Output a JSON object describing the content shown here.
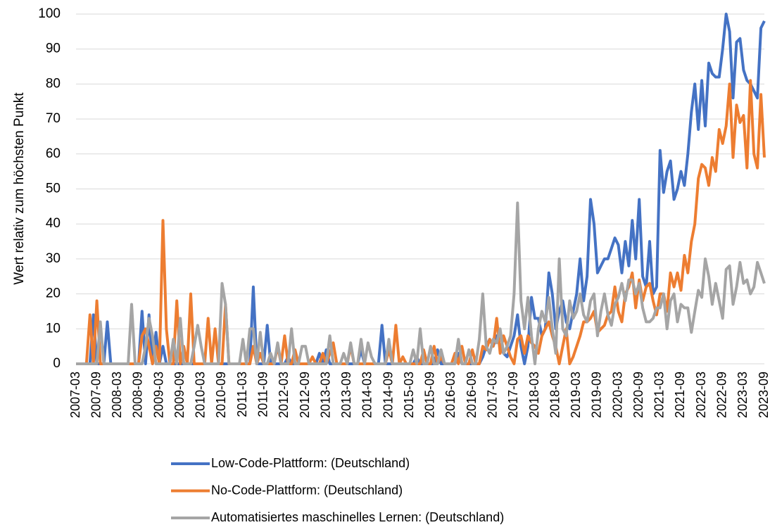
{
  "chart_data": {
    "type": "line",
    "y_label": "Wert relativ zum höchsten Punkt",
    "ylim": [
      0,
      100
    ],
    "yticks": [
      0,
      10,
      20,
      30,
      40,
      50,
      60,
      70,
      80,
      90,
      100
    ],
    "grid": true,
    "legend": "bottom",
    "categories": [
      "2007-03",
      null,
      null,
      null,
      null,
      null,
      "2007-09",
      null,
      null,
      null,
      null,
      null,
      "2008-03",
      null,
      null,
      null,
      null,
      null,
      "2008-09",
      null,
      null,
      null,
      null,
      null,
      "2009-03",
      null,
      null,
      null,
      null,
      null,
      "2009-09",
      null,
      null,
      null,
      null,
      null,
      "2010-03",
      null,
      null,
      null,
      null,
      null,
      "2010-09",
      null,
      null,
      null,
      null,
      null,
      "2011-03",
      null,
      null,
      null,
      null,
      null,
      "2011-09",
      null,
      null,
      null,
      null,
      null,
      "2012-03",
      null,
      null,
      null,
      null,
      null,
      "2012-09",
      null,
      null,
      null,
      null,
      null,
      "2013-03",
      null,
      null,
      null,
      null,
      null,
      "2013-09",
      null,
      null,
      null,
      null,
      null,
      "2014-03",
      null,
      null,
      null,
      null,
      null,
      "2014-09",
      null,
      null,
      null,
      null,
      null,
      "2015-03",
      null,
      null,
      null,
      null,
      null,
      "2015-09",
      null,
      null,
      null,
      null,
      null,
      "2016-03",
      null,
      null,
      null,
      null,
      null,
      "2016-09",
      null,
      null,
      null,
      null,
      null,
      "2017-03",
      null,
      null,
      null,
      null,
      null,
      "2017-09",
      null,
      null,
      null,
      null,
      null,
      "2018-03",
      null,
      null,
      null,
      null,
      null,
      "2018-09",
      null,
      null,
      null,
      null,
      null,
      "2019-03",
      null,
      null,
      null,
      null,
      null,
      "2019-09",
      null,
      null,
      null,
      null,
      null,
      "2020-03",
      null,
      null,
      null,
      null,
      null,
      "2020-09",
      null,
      null,
      null,
      null,
      null,
      "2021-03",
      null,
      null,
      null,
      null,
      null,
      "2021-09",
      null,
      null,
      null,
      null,
      null,
      "2022-03",
      null,
      null,
      null,
      null,
      null,
      "2022-09",
      null,
      null,
      null,
      null,
      null,
      "2023-03",
      null,
      null,
      null,
      null,
      null,
      "2023-09"
    ],
    "series": [
      {
        "name": "Low-Code-Plattform: (Deutschland)",
        "color": "#4472c4",
        "values": [
          0,
          0,
          0,
          0,
          0,
          14,
          0,
          0,
          0,
          12,
          0,
          0,
          0,
          0,
          0,
          0,
          0,
          0,
          0,
          15,
          0,
          14,
          0,
          9,
          0,
          5,
          0,
          0,
          0,
          0,
          0,
          0,
          0,
          0,
          0,
          0,
          0,
          0,
          0,
          0,
          0,
          0,
          0,
          0,
          0,
          0,
          0,
          0,
          0,
          0,
          0,
          22,
          0,
          0,
          0,
          11,
          0,
          0,
          0,
          0,
          0,
          2,
          0,
          0,
          0,
          0,
          0,
          0,
          0,
          0,
          3,
          0,
          4,
          0,
          0,
          0,
          0,
          0,
          0,
          0,
          0,
          0,
          4,
          0,
          0,
          0,
          0,
          0,
          11,
          0,
          0,
          0,
          0,
          0,
          0,
          0,
          0,
          0,
          2,
          0,
          0,
          0,
          0,
          0,
          4,
          0,
          0,
          0,
          0,
          0,
          3,
          0,
          0,
          0,
          0,
          0,
          0,
          2,
          5,
          7,
          5,
          8,
          5,
          3,
          2,
          5,
          8,
          14,
          5,
          0,
          5,
          19,
          13,
          13,
          8,
          10,
          26,
          20,
          10,
          15,
          18,
          12,
          10,
          15,
          20,
          30,
          18,
          25,
          47,
          40,
          26,
          28,
          30,
          30,
          33,
          36,
          34,
          26,
          35,
          28,
          41,
          30,
          47,
          25,
          22,
          35,
          20,
          22,
          61,
          49,
          55,
          58,
          47,
          50,
          55,
          51,
          60,
          72,
          80,
          67,
          81,
          68,
          86,
          83,
          82,
          82,
          90,
          100,
          95,
          76,
          92,
          93,
          84,
          81,
          80,
          78,
          76,
          96,
          98
        ]
      },
      {
        "name": "No-Code-Plattform: (Deutschland)",
        "color": "#ed7d31",
        "values": [
          0,
          0,
          0,
          0,
          14,
          0,
          18,
          0,
          0,
          0,
          0,
          0,
          0,
          0,
          0,
          0,
          0,
          0,
          0,
          8,
          10,
          5,
          0,
          5,
          0,
          41,
          10,
          0,
          0,
          18,
          0,
          5,
          0,
          20,
          0,
          0,
          0,
          0,
          13,
          0,
          10,
          0,
          0,
          17,
          0,
          0,
          0,
          0,
          0,
          0,
          0,
          5,
          0,
          3,
          0,
          0,
          0,
          0,
          5,
          0,
          8,
          0,
          0,
          4,
          0,
          0,
          0,
          0,
          2,
          0,
          0,
          3,
          0,
          3,
          6,
          0,
          0,
          0,
          0,
          5,
          0,
          0,
          0,
          0,
          0,
          0,
          0,
          0,
          0,
          0,
          4,
          0,
          11,
          0,
          2,
          0,
          0,
          0,
          0,
          0,
          4,
          0,
          0,
          5,
          0,
          2,
          0,
          0,
          0,
          3,
          0,
          5,
          0,
          0,
          4,
          0,
          0,
          5,
          4,
          7,
          5,
          13,
          3,
          8,
          5,
          2,
          0,
          7,
          8,
          3,
          8,
          6,
          5,
          3,
          8,
          10,
          12,
          8,
          5,
          0,
          5,
          10,
          0,
          2,
          5,
          8,
          12,
          12,
          13,
          15,
          9,
          10,
          11,
          14,
          15,
          22,
          15,
          12,
          20,
          22,
          26,
          16,
          24,
          18,
          22,
          23,
          18,
          14,
          20,
          20,
          15,
          26,
          22,
          26,
          21,
          31,
          26,
          35,
          40,
          53,
          57,
          56,
          51,
          59,
          55,
          67,
          63,
          68,
          80,
          59,
          74,
          69,
          71,
          56,
          81,
          60,
          56,
          77,
          59
        ]
      },
      {
        "name": "Automatisiertes maschinelles Lernen: (Deutschland)",
        "color": "#a5a5a5",
        "values": [
          0,
          0,
          0,
          0,
          0,
          0,
          0,
          12,
          0,
          0,
          0,
          0,
          0,
          0,
          0,
          0,
          17,
          0,
          0,
          0,
          5,
          13,
          8,
          0,
          0,
          0,
          0,
          0,
          7,
          0,
          13,
          0,
          0,
          0,
          5,
          11,
          5,
          0,
          0,
          0,
          0,
          0,
          23,
          17,
          0,
          0,
          0,
          0,
          7,
          0,
          10,
          10,
          0,
          9,
          0,
          0,
          3,
          0,
          6,
          0,
          0,
          0,
          10,
          0,
          0,
          5,
          5,
          0,
          0,
          0,
          0,
          0,
          0,
          8,
          0,
          0,
          0,
          3,
          0,
          6,
          0,
          0,
          7,
          0,
          6,
          2,
          0,
          0,
          0,
          0,
          7,
          0,
          0,
          0,
          0,
          0,
          0,
          4,
          0,
          10,
          0,
          0,
          5,
          0,
          0,
          4,
          0,
          0,
          0,
          0,
          7,
          0,
          0,
          4,
          0,
          0,
          7,
          20,
          5,
          3,
          7,
          6,
          10,
          3,
          5,
          8,
          20,
          46,
          18,
          10,
          19,
          8,
          0,
          10,
          15,
          12,
          19,
          10,
          3,
          30,
          10,
          8,
          18,
          13,
          15,
          20,
          14,
          12,
          18,
          20,
          8,
          15,
          20,
          14,
          11,
          17,
          19,
          23,
          18,
          24,
          24,
          20,
          23,
          16,
          12,
          12,
          13,
          16,
          16,
          20,
          10,
          18,
          20,
          12,
          17,
          16,
          16,
          9,
          15,
          21,
          19,
          30,
          25,
          17,
          23,
          18,
          13,
          27,
          28,
          17,
          22,
          29,
          23,
          24,
          20,
          22,
          29,
          26,
          23
        ]
      }
    ]
  }
}
